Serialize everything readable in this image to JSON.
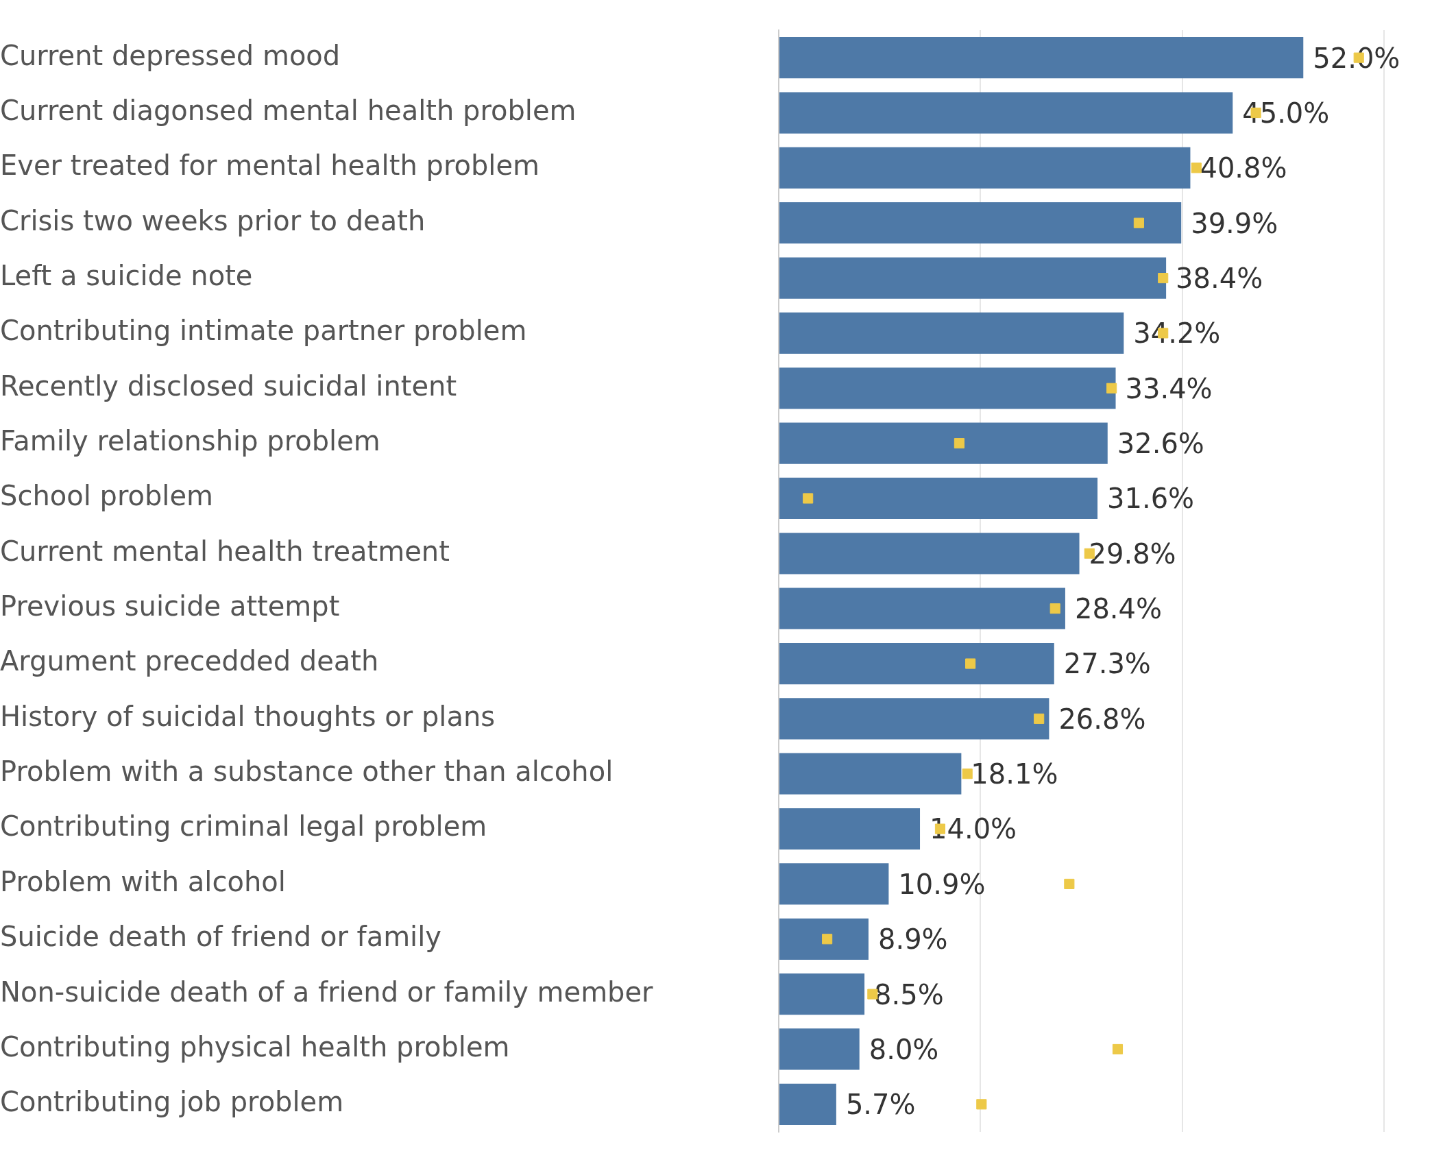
{
  "chart_data": {
    "type": "bar",
    "orientation": "horizontal",
    "categories": [
      "Current depressed mood",
      "Current diagonsed mental health problem",
      "Ever treated for mental health problem",
      "Crisis two weeks prior to death",
      "Left a suicide note",
      "Contributing intimate partner problem",
      "Recently disclosed suicidal intent",
      "Family relationship problem",
      "School problem",
      "Current mental health treatment",
      "Previous suicide attempt",
      "Argument precedded death",
      "History of suicidal thoughts or plans",
      "Problem with a substance other than alcohol",
      "Contributing criminal legal problem",
      "Problem with alcohol",
      "Suicide death of friend or family",
      "Non-suicide death of a friend or family member",
      "Contributing physical health problem",
      "Contributing job problem"
    ],
    "series": [
      {
        "color": "#4e79a7",
        "values": [
          52.0,
          45.0,
          40.8,
          39.9,
          38.4,
          34.2,
          33.4,
          32.6,
          31.6,
          29.8,
          28.4,
          27.3,
          26.8,
          18.1,
          14.0,
          10.9,
          8.9,
          8.5,
          8.0,
          5.7
        ],
        "value_labels": [
          "52.0%",
          "45.0%",
          "40.8%",
          "39.9%",
          "38.4%",
          "34.2%",
          "33.4%",
          "32.6%",
          "31.6%",
          "29.8%",
          "28.4%",
          "27.3%",
          "26.8%",
          "18.1%",
          "14.0%",
          "10.9%",
          "8.9%",
          "8.5%",
          "8.0%",
          "5.7%"
        ]
      },
      {
        "type": "scatter",
        "color": "#edc948",
        "x": [
          "Current depressed mood",
          "Current diagonsed mental health problem",
          "Ever treated for mental health problem",
          "Crisis two weeks prior to death",
          "Left a suicide note",
          "Contributing intimate partner problem",
          "Recently disclosed suicidal intent",
          "Family relationship problem",
          "School problem",
          "Current mental health treatment",
          "Previous suicide attempt",
          "Argument precedded death",
          "History of suicidal thoughts or plans",
          "Problem with a substance other than alcohol",
          "Contributing criminal legal problem",
          "Problem with alcohol",
          "Suicide death of friend or family",
          "Non-suicide death of a friend or family member",
          "Contributing physical health problem",
          "Contributing job problem"
        ],
        "values": [
          57.5,
          47.3,
          41.4,
          35.7,
          38.1,
          38.1,
          33.0,
          17.9,
          2.9,
          30.8,
          27.4,
          19.0,
          25.8,
          18.7,
          16.0,
          28.8,
          4.8,
          9.3,
          33.6,
          20.1
        ]
      }
    ],
    "xlim": [
      0,
      60
    ],
    "xticks": [
      {
        "value": 0,
        "label": null
      },
      {
        "value": 20,
        "label": null
      },
      {
        "value": 40,
        "label": null
      },
      {
        "value": 60,
        "label": null
      }
    ],
    "grid": "x",
    "tick_labels": "y"
  }
}
